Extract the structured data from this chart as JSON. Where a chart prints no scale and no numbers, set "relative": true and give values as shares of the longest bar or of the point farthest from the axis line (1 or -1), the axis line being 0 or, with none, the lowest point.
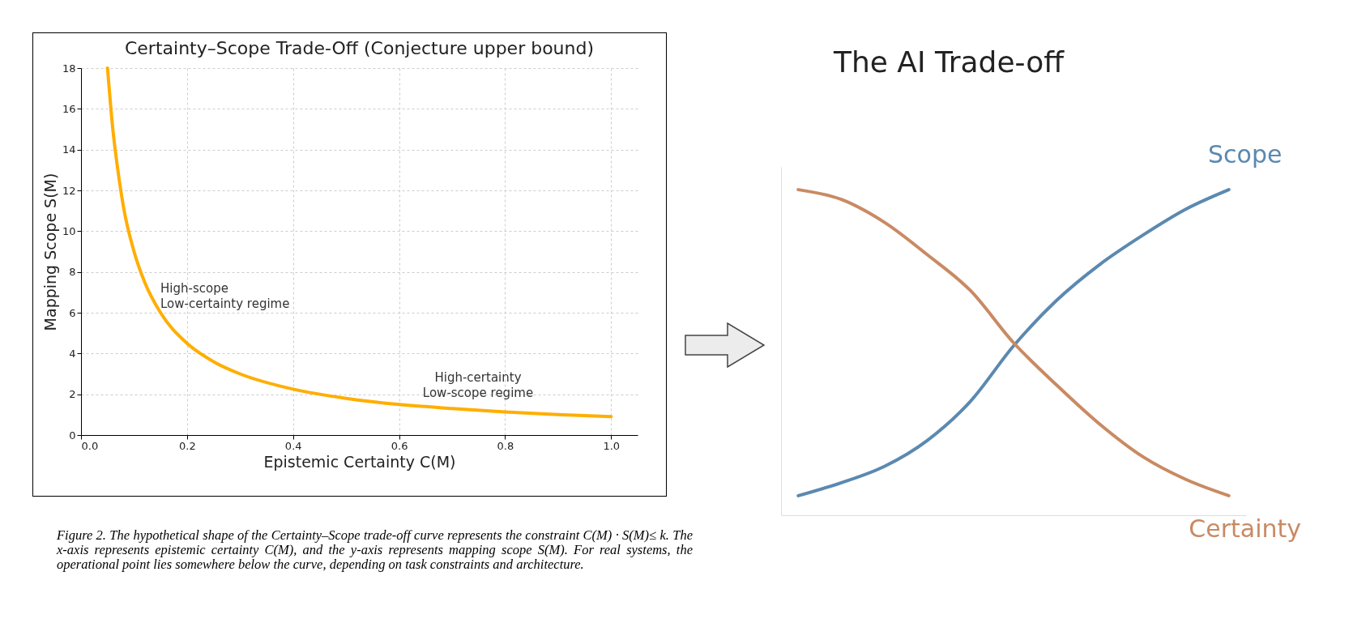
{
  "chart_data": [
    {
      "type": "line",
      "title": "Certainty–Scope Trade-Off (Conjecture upper bound)",
      "xlabel": "Epistemic Certainty  C(M)",
      "ylabel": "Mapping Scope  S(M)",
      "x": [
        0.05,
        0.06,
        0.07,
        0.08,
        0.1,
        0.12,
        0.15,
        0.2,
        0.25,
        0.3,
        0.4,
        0.5,
        0.6,
        0.7,
        0.8,
        0.9,
        1.0
      ],
      "series": [
        {
          "color": "#ffae00",
          "values": [
            18,
            15,
            12.9,
            11.2,
            9,
            7.5,
            6,
            4.5,
            3.6,
            3,
            2.25,
            1.8,
            1.5,
            1.3,
            1.13,
            1.0,
            0.9
          ]
        }
      ],
      "xlim": [
        0,
        1.05
      ],
      "xticks": [
        {
          "value": 0,
          "label": "0.0"
        },
        0.2,
        0.4,
        0.6,
        0.8,
        {
          "value": 1,
          "label": "1.0"
        }
      ],
      "ylim": [
        0,
        18
      ],
      "yticks": [
        0,
        2,
        4,
        6,
        8,
        10,
        12,
        14,
        16,
        18
      ],
      "grid": true,
      "legend": false,
      "annotations": [
        "High-scope\nLow-certainty regime",
        "High-certainty\nLow-scope regime",
        "Figure 2. The hypothetical shape of the Certainty–Scope trade-off curve represents the constraint C(M) · S(M)≤ k. The x-axis represents epistemic certainty C(M), and the y-axis represents mapping scope S(M). For real systems, the operational point lies somewhere below the curve, depending on task constraints and architecture."
      ]
    },
    {
      "type": "line",
      "title": "The AI Trade-off",
      "relative": true,
      "legend": false,
      "grid": false,
      "categories": [
        null,
        null,
        null,
        null,
        null,
        null,
        null,
        null,
        null,
        null,
        null
      ],
      "series": [
        {
          "name": "Scope",
          "color": "#5b89b0",
          "values": [
            0.06,
            0.1,
            0.15,
            0.23,
            0.35,
            0.52,
            0.66,
            0.77,
            0.86,
            0.94,
            1.0
          ]
        },
        {
          "name": "Certainty",
          "color": "#c98a63",
          "values": [
            1.0,
            0.97,
            0.9,
            0.8,
            0.69,
            0.53,
            0.4,
            0.28,
            0.18,
            0.11,
            0.06
          ]
        }
      ]
    }
  ]
}
